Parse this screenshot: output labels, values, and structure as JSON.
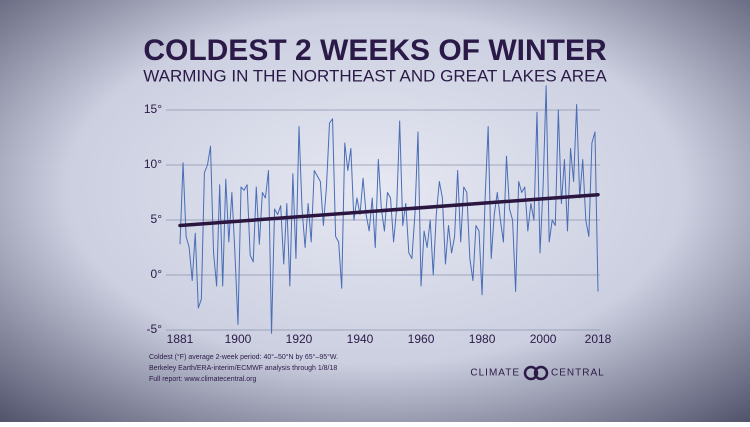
{
  "chart_data": {
    "type": "line",
    "title": "COLDEST 2 WEEKS OF WINTER",
    "subtitle": "WARMING IN THE NORTHEAST AND GREAT LAKES AREA",
    "x": [
      1881,
      1882,
      1883,
      1884,
      1885,
      1886,
      1887,
      1888,
      1889,
      1890,
      1891,
      1892,
      1893,
      1894,
      1895,
      1896,
      1897,
      1898,
      1899,
      1900,
      1901,
      1902,
      1903,
      1904,
      1905,
      1906,
      1907,
      1908,
      1909,
      1910,
      1911,
      1912,
      1913,
      1914,
      1915,
      1916,
      1917,
      1918,
      1919,
      1920,
      1921,
      1922,
      1923,
      1924,
      1925,
      1926,
      1927,
      1928,
      1929,
      1930,
      1931,
      1932,
      1933,
      1934,
      1935,
      1936,
      1937,
      1938,
      1939,
      1940,
      1941,
      1942,
      1943,
      1944,
      1945,
      1946,
      1947,
      1948,
      1949,
      1950,
      1951,
      1952,
      1953,
      1954,
      1955,
      1956,
      1957,
      1958,
      1959,
      1960,
      1961,
      1962,
      1963,
      1964,
      1965,
      1966,
      1967,
      1968,
      1969,
      1970,
      1971,
      1972,
      1973,
      1974,
      1975,
      1976,
      1977,
      1978,
      1979,
      1980,
      1981,
      1982,
      1983,
      1984,
      1985,
      1986,
      1987,
      1988,
      1989,
      1990,
      1991,
      1992,
      1993,
      1994,
      1995,
      1996,
      1997,
      1998,
      1999,
      2000,
      2001,
      2002,
      2003,
      2004,
      2005,
      2006,
      2007,
      2008,
      2009,
      2010,
      2011,
      2012,
      2013,
      2014,
      2015,
      2016,
      2017,
      2018
    ],
    "series": [
      {
        "color": "#4a6db5",
        "values": [
          2.8,
          10.2,
          3.5,
          2.5,
          -0.5,
          3.8,
          -3.0,
          -2.2,
          9.3,
          10.0,
          11.7,
          2.0,
          -1.0,
          8.2,
          -1.0,
          8.7,
          3.0,
          7.5,
          2.0,
          -4.5,
          8.0,
          7.7,
          8.2,
          1.8,
          1.2,
          8.0,
          2.8,
          7.5,
          7.0,
          9.5,
          -5.3,
          6.0,
          5.5,
          6.3,
          1.0,
          6.5,
          -1.0,
          9.2,
          1.5,
          13.5,
          6.0,
          2.5,
          6.5,
          3.0,
          9.5,
          9.0,
          8.5,
          4.5,
          8.0,
          13.8,
          14.2,
          3.5,
          3.0,
          -1.2,
          12.0,
          9.5,
          11.5,
          5.0,
          7.0,
          5.5,
          8.8,
          5.5,
          4.0,
          7.0,
          2.5,
          10.5,
          6.0,
          4.0,
          7.5,
          7.0,
          3.0,
          6.0,
          14.0,
          4.5,
          6.5,
          2.0,
          1.5,
          5.5,
          13.0,
          -1.0,
          4.0,
          2.5,
          5.0,
          0.0,
          5.5,
          8.5,
          7.0,
          1.0,
          4.5,
          2.0,
          3.5,
          9.5,
          3.0,
          8.0,
          7.5,
          1.5,
          -0.5,
          4.5,
          4.0,
          -1.8,
          7.0,
          13.5,
          1.5,
          5.5,
          7.5,
          5.0,
          3.0,
          10.8,
          6.0,
          5.0,
          -1.5,
          8.5,
          7.5,
          8.0,
          4.0,
          6.5,
          5.0,
          14.8,
          2.0,
          8.0,
          17.2,
          3.0,
          5.0,
          4.5,
          15.0,
          6.5,
          10.5,
          4.0,
          11.5,
          8.5,
          15.5,
          7.0,
          10.5,
          5.0,
          3.5,
          12.0,
          13.0,
          -1.5
        ]
      }
    ],
    "trend": {
      "color": "#2b1640",
      "x": [
        1881,
        2018
      ],
      "values": [
        4.5,
        7.3
      ]
    },
    "xlim": [
      1881,
      2018
    ],
    "xticks": [
      1881,
      1900,
      1920,
      1940,
      1960,
      1980,
      2000,
      2018
    ],
    "ylim": [
      -5.5,
      17.5
    ],
    "yticks": [
      {
        "value": -5,
        "label": "-5°"
      },
      {
        "value": 0,
        "label": "0°"
      },
      {
        "value": 5,
        "label": "5°"
      },
      {
        "value": 10,
        "label": "10°"
      },
      {
        "value": 15,
        "label": "15°"
      }
    ],
    "grid": true,
    "notes": [
      "Coldest (°F) average 2-week period: 40°–50°N by 65°–95°W.",
      "Berkeley Earth/ERA-interim/ECMWF analysis through 1/8/18",
      "Full report: www.climatecentral.org"
    ],
    "brand": [
      "CLIMATE",
      "CENTRAL"
    ]
  }
}
